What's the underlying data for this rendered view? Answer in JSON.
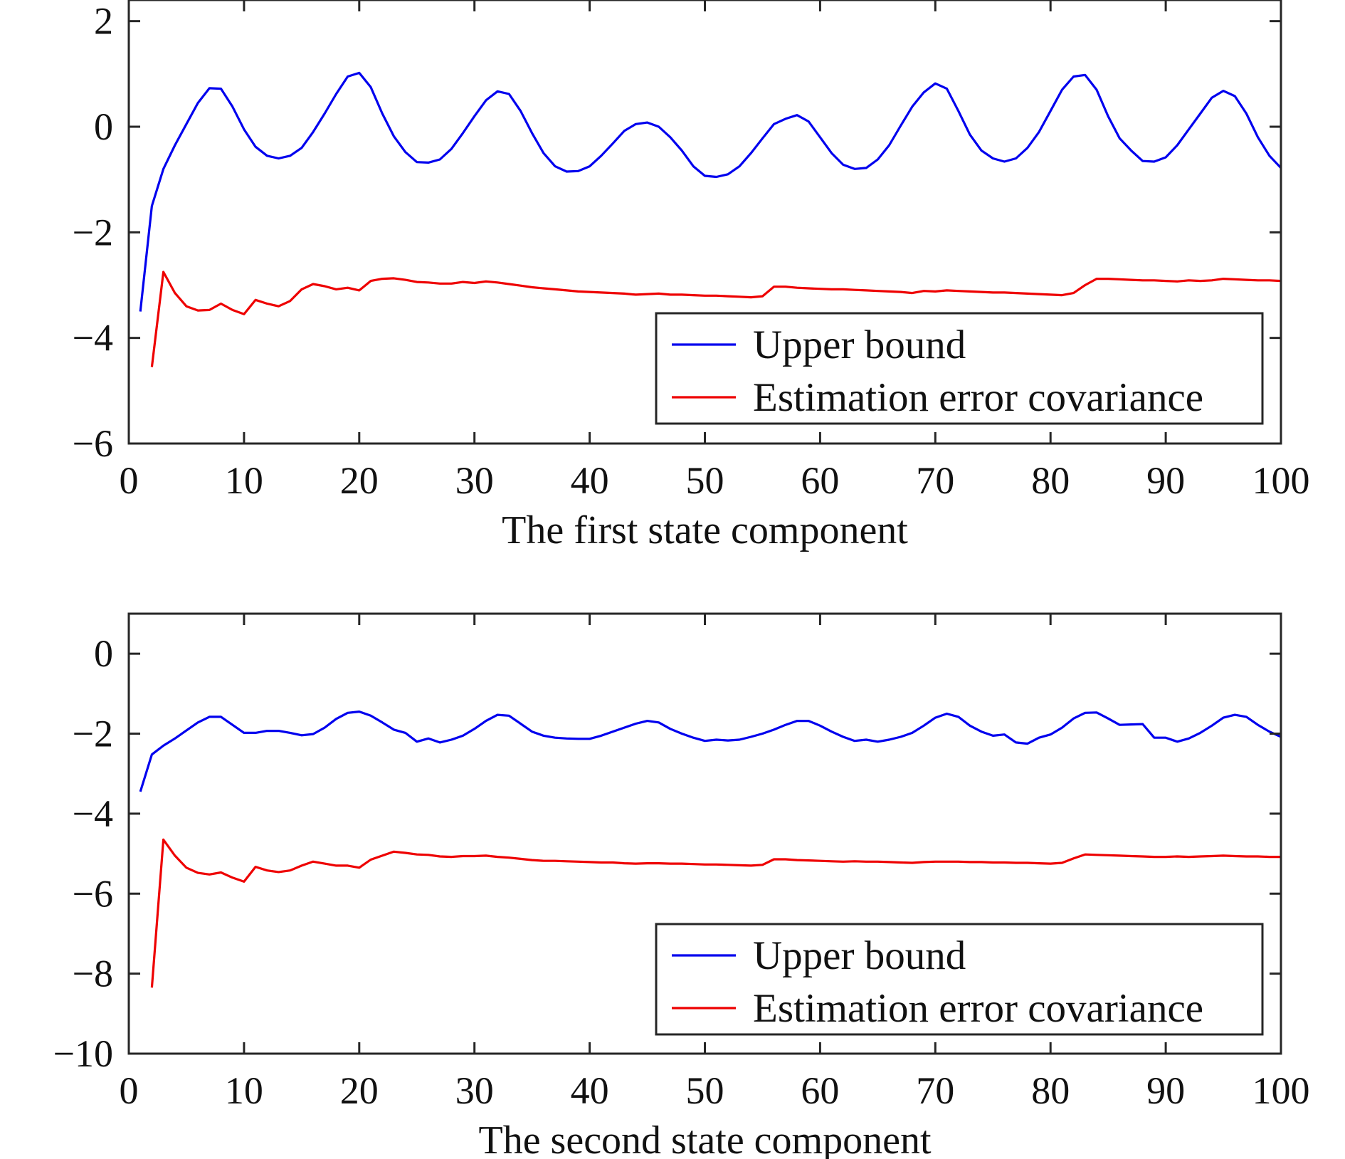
{
  "chart_data": [
    {
      "type": "line",
      "title": "",
      "xlabel": "The first state component",
      "ylabel": "",
      "xlim": [
        0,
        100
      ],
      "ylim": [
        -6,
        2.4
      ],
      "xticks": [
        0,
        10,
        20,
        30,
        40,
        50,
        60,
        70,
        80,
        90,
        100
      ],
      "yticks": [
        -6,
        -4,
        -2,
        0,
        2
      ],
      "xtick_labels": [
        "0",
        "10",
        "20",
        "30",
        "40",
        "50",
        "60",
        "70",
        "80",
        "90",
        "100"
      ],
      "ytick_labels": [
        "−6",
        "−4",
        "−2",
        "0",
        "2"
      ],
      "grid": false,
      "legend_position": "bottom-right",
      "series": [
        {
          "name": "Upper bound",
          "color": "#0000ee",
          "x": [
            1,
            2,
            3,
            4,
            5,
            6,
            7,
            8,
            9,
            10,
            11,
            12,
            13,
            14,
            15,
            16,
            17,
            18,
            19,
            20,
            21,
            22,
            23,
            24,
            25,
            26,
            27,
            28,
            29,
            30,
            31,
            32,
            33,
            34,
            35,
            36,
            37,
            38,
            39,
            40,
            41,
            42,
            43,
            44,
            45,
            46,
            47,
            48,
            49,
            50,
            51,
            52,
            53,
            54,
            55,
            56,
            57,
            58,
            59,
            60,
            61,
            62,
            63,
            64,
            65,
            66,
            67,
            68,
            69,
            70,
            71,
            72,
            73,
            74,
            75,
            76,
            77,
            78,
            79,
            80,
            81,
            82,
            83,
            84,
            85,
            86,
            87,
            88,
            89,
            90,
            91,
            92,
            93,
            94,
            95,
            96,
            97,
            98,
            99,
            100
          ],
          "y": [
            -3.5,
            -1.5,
            -0.8,
            -0.35,
            0.05,
            0.45,
            0.73,
            0.72,
            0.38,
            -0.05,
            -0.38,
            -0.55,
            -0.6,
            -0.55,
            -0.4,
            -0.1,
            0.25,
            0.62,
            0.95,
            1.02,
            0.75,
            0.25,
            -0.18,
            -0.48,
            -0.67,
            -0.68,
            -0.62,
            -0.42,
            -0.12,
            0.2,
            0.5,
            0.67,
            0.62,
            0.3,
            -0.12,
            -0.5,
            -0.75,
            -0.85,
            -0.84,
            -0.75,
            -0.55,
            -0.32,
            -0.08,
            0.05,
            0.08,
            0.0,
            -0.2,
            -0.45,
            -0.75,
            -0.93,
            -0.95,
            -0.9,
            -0.75,
            -0.5,
            -0.22,
            0.05,
            0.15,
            0.22,
            0.1,
            -0.2,
            -0.5,
            -0.72,
            -0.8,
            -0.78,
            -0.62,
            -0.35,
            0.02,
            0.38,
            0.65,
            0.82,
            0.72,
            0.3,
            -0.15,
            -0.45,
            -0.6,
            -0.66,
            -0.6,
            -0.4,
            -0.1,
            0.3,
            0.7,
            0.95,
            0.98,
            0.7,
            0.2,
            -0.22,
            -0.45,
            -0.65,
            -0.66,
            -0.58,
            -0.35,
            -0.05,
            0.25,
            0.55,
            0.68,
            0.58,
            0.25,
            -0.2,
            -0.55,
            -0.78
          ]
        },
        {
          "name": "Estimation error covariance",
          "color": "#ee0000",
          "x": [
            2,
            3,
            4,
            5,
            6,
            7,
            8,
            9,
            10,
            11,
            12,
            13,
            14,
            15,
            16,
            17,
            18,
            19,
            20,
            21,
            22,
            23,
            24,
            25,
            26,
            27,
            28,
            29,
            30,
            31,
            32,
            33,
            34,
            35,
            36,
            37,
            38,
            39,
            40,
            41,
            42,
            43,
            44,
            45,
            46,
            47,
            48,
            49,
            50,
            51,
            52,
            53,
            54,
            55,
            56,
            57,
            58,
            59,
            60,
            61,
            62,
            63,
            64,
            65,
            66,
            67,
            68,
            69,
            70,
            71,
            72,
            73,
            74,
            75,
            76,
            77,
            78,
            79,
            80,
            81,
            82,
            83,
            84,
            85,
            86,
            87,
            88,
            89,
            90,
            91,
            92,
            93,
            94,
            95,
            96,
            97,
            98,
            99,
            100
          ],
          "y": [
            -4.55,
            -2.75,
            -3.15,
            -3.4,
            -3.48,
            -3.47,
            -3.35,
            -3.47,
            -3.55,
            -3.28,
            -3.35,
            -3.4,
            -3.3,
            -3.08,
            -2.98,
            -3.02,
            -3.08,
            -3.05,
            -3.1,
            -2.92,
            -2.88,
            -2.87,
            -2.9,
            -2.94,
            -2.95,
            -2.97,
            -2.97,
            -2.94,
            -2.96,
            -2.93,
            -2.95,
            -2.98,
            -3.01,
            -3.04,
            -3.06,
            -3.08,
            -3.1,
            -3.12,
            -3.13,
            -3.14,
            -3.15,
            -3.16,
            -3.18,
            -3.17,
            -3.16,
            -3.18,
            -3.18,
            -3.19,
            -3.2,
            -3.2,
            -3.21,
            -3.22,
            -3.23,
            -3.21,
            -3.03,
            -3.03,
            -3.05,
            -3.06,
            -3.07,
            -3.08,
            -3.08,
            -3.09,
            -3.1,
            -3.11,
            -3.12,
            -3.13,
            -3.15,
            -3.11,
            -3.12,
            -3.1,
            -3.11,
            -3.12,
            -3.13,
            -3.14,
            -3.14,
            -3.15,
            -3.16,
            -3.17,
            -3.18,
            -3.19,
            -3.15,
            -3.0,
            -2.88,
            -2.88,
            -2.89,
            -2.9,
            -2.91,
            -2.91,
            -2.92,
            -2.93,
            -2.91,
            -2.92,
            -2.91,
            -2.88,
            -2.89,
            -2.9,
            -2.91,
            -2.91,
            -2.92
          ]
        }
      ]
    },
    {
      "type": "line",
      "title": "",
      "xlabel": "The second state component",
      "ylabel": "",
      "xlim": [
        0,
        100
      ],
      "ylim": [
        -10,
        1
      ],
      "xticks": [
        0,
        10,
        20,
        30,
        40,
        50,
        60,
        70,
        80,
        90,
        100
      ],
      "yticks": [
        -10,
        -8,
        -6,
        -4,
        -2,
        0
      ],
      "xtick_labels": [
        "0",
        "10",
        "20",
        "30",
        "40",
        "50",
        "60",
        "70",
        "80",
        "90",
        "100"
      ],
      "ytick_labels": [
        "−10",
        "−8",
        "−6",
        "−4",
        "−2",
        "0"
      ],
      "grid": false,
      "legend_position": "bottom-right",
      "series": [
        {
          "name": "Upper bound",
          "color": "#0000ee",
          "x": [
            1,
            2,
            3,
            4,
            5,
            6,
            7,
            8,
            9,
            10,
            11,
            12,
            13,
            14,
            15,
            16,
            17,
            18,
            19,
            20,
            21,
            22,
            23,
            24,
            25,
            26,
            27,
            28,
            29,
            30,
            31,
            32,
            33,
            34,
            35,
            36,
            37,
            38,
            39,
            40,
            41,
            42,
            43,
            44,
            45,
            46,
            47,
            48,
            49,
            50,
            51,
            52,
            53,
            54,
            55,
            56,
            57,
            58,
            59,
            60,
            61,
            62,
            63,
            64,
            65,
            66,
            67,
            68,
            69,
            70,
            71,
            72,
            73,
            74,
            75,
            76,
            77,
            78,
            79,
            80,
            81,
            82,
            83,
            84,
            85,
            86,
            87,
            88,
            89,
            90,
            91,
            92,
            93,
            94,
            95,
            96,
            97,
            98,
            99,
            100
          ],
          "y": [
            -3.45,
            -2.52,
            -2.3,
            -2.12,
            -1.92,
            -1.72,
            -1.58,
            -1.58,
            -1.78,
            -1.98,
            -1.98,
            -1.93,
            -1.93,
            -1.98,
            -2.04,
            -2.01,
            -1.85,
            -1.63,
            -1.48,
            -1.45,
            -1.55,
            -1.72,
            -1.9,
            -1.98,
            -2.2,
            -2.12,
            -2.22,
            -2.15,
            -2.05,
            -1.88,
            -1.68,
            -1.53,
            -1.55,
            -1.75,
            -1.95,
            -2.05,
            -2.1,
            -2.12,
            -2.13,
            -2.13,
            -2.05,
            -1.95,
            -1.85,
            -1.75,
            -1.68,
            -1.72,
            -1.88,
            -2.0,
            -2.1,
            -2.18,
            -2.15,
            -2.17,
            -2.15,
            -2.08,
            -2.0,
            -1.9,
            -1.78,
            -1.68,
            -1.68,
            -1.8,
            -1.95,
            -2.08,
            -2.18,
            -2.15,
            -2.2,
            -2.15,
            -2.08,
            -1.98,
            -1.8,
            -1.6,
            -1.5,
            -1.58,
            -1.8,
            -1.95,
            -2.05,
            -2.02,
            -2.22,
            -2.25,
            -2.1,
            -2.02,
            -1.85,
            -1.62,
            -1.48,
            -1.47,
            -1.62,
            -1.78,
            -1.77,
            -1.76,
            -2.1,
            -2.1,
            -2.2,
            -2.12,
            -1.98,
            -1.8,
            -1.6,
            -1.53,
            -1.58,
            -1.78,
            -1.95,
            -2.08
          ]
        },
        {
          "name": "Estimation error covariance",
          "color": "#ee0000",
          "x": [
            2,
            3,
            4,
            5,
            6,
            7,
            8,
            9,
            10,
            11,
            12,
            13,
            14,
            15,
            16,
            17,
            18,
            19,
            20,
            21,
            22,
            23,
            24,
            25,
            26,
            27,
            28,
            29,
            30,
            31,
            32,
            33,
            34,
            35,
            36,
            37,
            38,
            39,
            40,
            41,
            42,
            43,
            44,
            45,
            46,
            47,
            48,
            49,
            50,
            51,
            52,
            53,
            54,
            55,
            56,
            57,
            58,
            59,
            60,
            61,
            62,
            63,
            64,
            65,
            66,
            67,
            68,
            69,
            70,
            71,
            72,
            73,
            74,
            75,
            76,
            77,
            78,
            79,
            80,
            81,
            82,
            83,
            84,
            85,
            86,
            87,
            88,
            89,
            90,
            91,
            92,
            93,
            94,
            95,
            96,
            97,
            98,
            99,
            100
          ],
          "y": [
            -8.35,
            -4.65,
            -5.05,
            -5.35,
            -5.48,
            -5.52,
            -5.47,
            -5.6,
            -5.7,
            -5.33,
            -5.42,
            -5.46,
            -5.42,
            -5.3,
            -5.2,
            -5.25,
            -5.3,
            -5.3,
            -5.35,
            -5.15,
            -5.05,
            -4.95,
            -4.98,
            -5.02,
            -5.03,
            -5.07,
            -5.08,
            -5.06,
            -5.06,
            -5.05,
            -5.08,
            -5.1,
            -5.13,
            -5.16,
            -5.18,
            -5.18,
            -5.19,
            -5.2,
            -5.21,
            -5.22,
            -5.22,
            -5.24,
            -5.25,
            -5.24,
            -5.24,
            -5.25,
            -5.25,
            -5.26,
            -5.27,
            -5.27,
            -5.28,
            -5.29,
            -5.3,
            -5.28,
            -5.14,
            -5.14,
            -5.16,
            -5.17,
            -5.18,
            -5.19,
            -5.2,
            -5.19,
            -5.2,
            -5.2,
            -5.21,
            -5.22,
            -5.23,
            -5.21,
            -5.2,
            -5.2,
            -5.2,
            -5.21,
            -5.21,
            -5.22,
            -5.22,
            -5.23,
            -5.23,
            -5.24,
            -5.25,
            -5.23,
            -5.12,
            -5.02,
            -5.03,
            -5.04,
            -5.05,
            -5.06,
            -5.07,
            -5.08,
            -5.08,
            -5.07,
            -5.08,
            -5.07,
            -5.06,
            -5.05,
            -5.06,
            -5.07,
            -5.07,
            -5.08,
            -5.08
          ]
        }
      ]
    }
  ]
}
